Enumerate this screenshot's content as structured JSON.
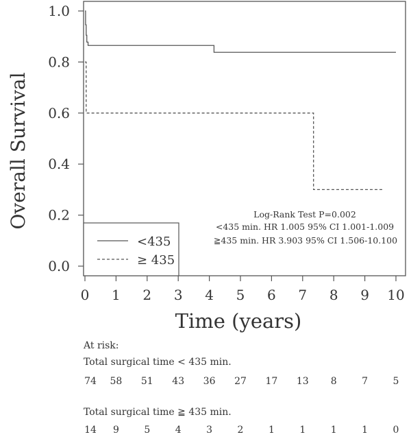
{
  "chart_data": {
    "type": "line",
    "step": true,
    "xlabel": "Time (years)",
    "ylabel": "Overall Survival",
    "xlim": [
      0,
      10
    ],
    "ylim": [
      0,
      1
    ],
    "x_ticks": [
      "0",
      "1",
      "2",
      "3",
      "4",
      "5",
      "6",
      "7",
      "8",
      "9",
      "10"
    ],
    "y_ticks": [
      "0.0",
      "0.2",
      "0.4",
      "0.6",
      "0.8",
      "1.0"
    ],
    "grid": false,
    "legend_position": "bottom-left",
    "series": [
      {
        "name": "<435",
        "style": "solid",
        "x": [
          0,
          0.02,
          0.04,
          0.06,
          0.1,
          0.25,
          4.15,
          10.0
        ],
        "y": [
          1.0,
          0.946,
          0.905,
          0.878,
          0.865,
          0.865,
          0.838,
          0.838
        ]
      },
      {
        "name": "≥ 435",
        "style": "dashed",
        "x": [
          0,
          0.04,
          7.35,
          9.6
        ],
        "y": [
          0.8,
          0.6,
          0.3,
          0.3
        ]
      }
    ],
    "annotations": [
      "Log-Rank Test P=0.002",
      "<435 min. HR 1.005 95% CI 1.001-1.009",
      "≧435 min. HR 3.903 95% CI 1.506-10.100"
    ]
  },
  "at_risk": {
    "heading": "At risk:",
    "groups": [
      {
        "label": "Total surgical time < 435 min.",
        "counts": [
          "74",
          "58",
          "51",
          "43",
          "36",
          "27",
          "17",
          "13",
          "8",
          "7",
          "5"
        ]
      },
      {
        "label": "Total surgical time ≧ 435 min.",
        "counts": [
          "14",
          "9",
          "5",
          "4",
          "3",
          "2",
          "1",
          "1",
          "1",
          "1",
          "0"
        ]
      }
    ]
  },
  "colors": {
    "line": "#555555",
    "text": "#333333"
  }
}
